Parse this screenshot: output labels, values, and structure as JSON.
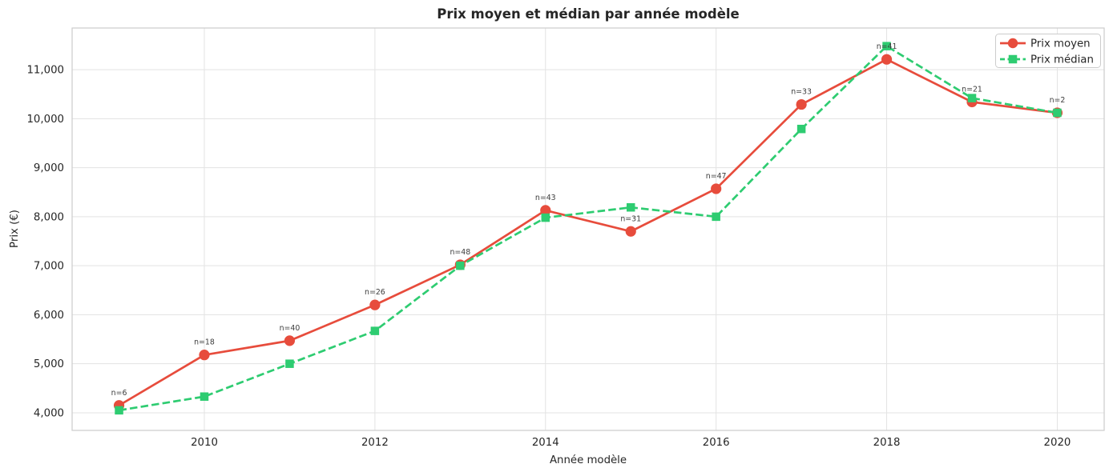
{
  "figure": {
    "title": "Prix moyen et médian par année modèle",
    "xlabel": "Année modèle",
    "ylabel": "Prix (€)"
  },
  "legend": {
    "position": "upper right",
    "items": [
      {
        "label": "Prix moyen"
      },
      {
        "label": "Prix médian"
      }
    ]
  },
  "colors": {
    "moyen": "#e74c3c",
    "median": "#2ecc71",
    "grid": "#e3e3e3",
    "spine": "#cccccc",
    "text": "#262626",
    "annotation": "#3d3d3d",
    "background": "#ffffff"
  },
  "chart_data": {
    "type": "line",
    "title": "Prix moyen et médian par année modèle",
    "xlabel": "Année modèle",
    "ylabel": "Prix (€)",
    "x": [
      2009,
      2010,
      2011,
      2012,
      2013,
      2014,
      2015,
      2016,
      2017,
      2018,
      2019,
      2020
    ],
    "series": [
      {
        "name": "Prix moyen",
        "color": "#e74c3c",
        "line_style": "solid",
        "marker": "circle",
        "values": [
          4150,
          5180,
          5470,
          6200,
          7020,
          8130,
          7700,
          8570,
          10290,
          11210,
          10340,
          10120
        ]
      },
      {
        "name": "Prix médian",
        "color": "#2ecc71",
        "line_style": "dashed",
        "marker": "square",
        "values": [
          4050,
          4330,
          5000,
          5670,
          7000,
          7980,
          8190,
          8000,
          9790,
          11480,
          10420,
          10120
        ]
      }
    ],
    "annotations": [
      {
        "x": 2009,
        "label": "n=6"
      },
      {
        "x": 2010,
        "label": "n=18"
      },
      {
        "x": 2011,
        "label": "n=40"
      },
      {
        "x": 2012,
        "label": "n=26"
      },
      {
        "x": 2013,
        "label": "n=48"
      },
      {
        "x": 2014,
        "label": "n=43"
      },
      {
        "x": 2015,
        "label": "n=31"
      },
      {
        "x": 2016,
        "label": "n=47"
      },
      {
        "x": 2017,
        "label": "n=33"
      },
      {
        "x": 2018,
        "label": "n=41"
      },
      {
        "x": 2019,
        "label": "n=21"
      },
      {
        "x": 2020,
        "label": "n=2"
      }
    ],
    "xticks": {
      "values": [
        2010,
        2012,
        2014,
        2016,
        2018,
        2020
      ],
      "labels": [
        "2010",
        "2012",
        "2014",
        "2016",
        "2018",
        "2020"
      ]
    },
    "yticks": {
      "values": [
        4000,
        5000,
        6000,
        7000,
        8000,
        9000,
        10000,
        11000
      ],
      "labels": [
        "4,000",
        "5,000",
        "6,000",
        "7,000",
        "8,000",
        "9,000",
        "10,000",
        "11,000"
      ]
    },
    "xlim": [
      2008.45,
      2020.55
    ],
    "ylim": [
      3640,
      11850
    ],
    "grid": true,
    "legend_position": "upper right"
  }
}
